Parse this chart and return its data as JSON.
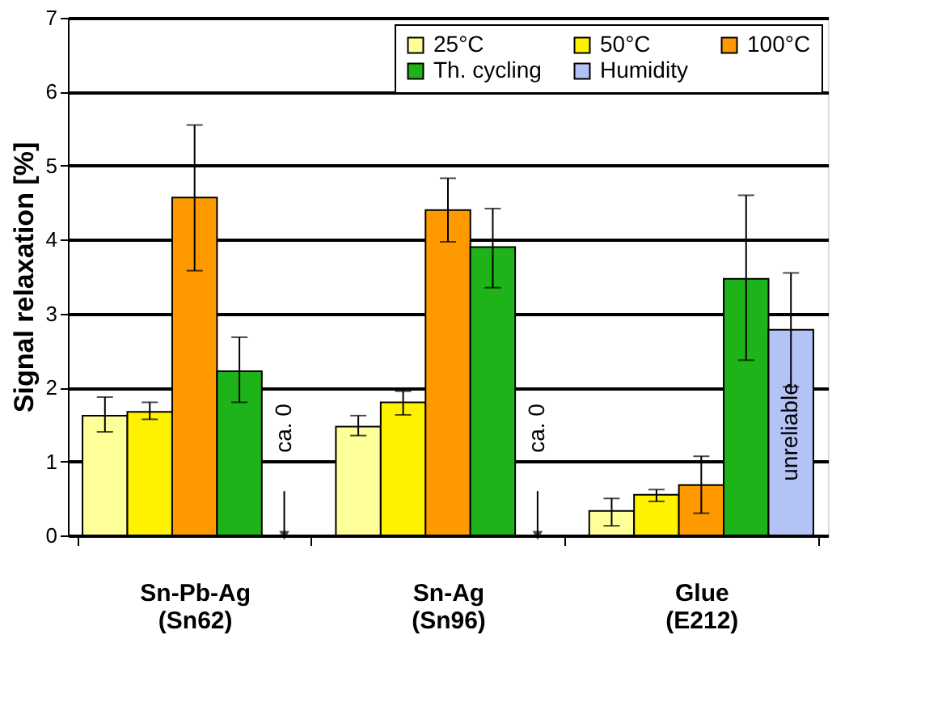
{
  "chart_data": {
    "type": "bar",
    "ylabel": "Signal relaxation [%]",
    "categories": [
      "Sn-Pb-Ag\n(Sn62)",
      "Sn-Ag\n(Sn96)",
      "Glue\n(E212)"
    ],
    "series": [
      {
        "name": "25°C",
        "color": "#ffff99",
        "values": [
          1.62,
          1.47,
          0.33
        ],
        "errors": [
          [
            1.4,
            1.87
          ],
          [
            1.35,
            1.62
          ],
          [
            0.13,
            0.5
          ]
        ]
      },
      {
        "name": "50°C",
        "color": "#fff200",
        "values": [
          1.67,
          1.8,
          0.55
        ],
        "errors": [
          [
            1.57,
            1.8
          ],
          [
            1.63,
            1.95
          ],
          [
            0.46,
            0.62
          ]
        ]
      },
      {
        "name": "100°C",
        "color": "#ff9900",
        "values": [
          4.57,
          4.4,
          0.68
        ],
        "errors": [
          [
            3.58,
            5.55
          ],
          [
            3.97,
            4.83
          ],
          [
            0.3,
            1.07
          ]
        ]
      },
      {
        "name": "Th. cycling",
        "color": "#1fb31a",
        "values": [
          2.22,
          3.9,
          3.47
        ],
        "errors": [
          [
            1.8,
            2.68
          ],
          [
            3.35,
            4.42
          ],
          [
            2.37,
            4.6
          ]
        ]
      },
      {
        "name": "Humidity",
        "color": "#b3c3f5",
        "values": [
          null,
          null,
          2.78
        ],
        "errors": [
          null,
          null,
          0.77
        ]
      }
    ],
    "annotations": [
      "ca. 0",
      "ca. 0",
      "unreliable"
    ],
    "ylim": [
      0,
      7
    ],
    "yticks": [
      0,
      1,
      2,
      3,
      4,
      5,
      6,
      7
    ],
    "grid": "y",
    "legend": "top right"
  }
}
